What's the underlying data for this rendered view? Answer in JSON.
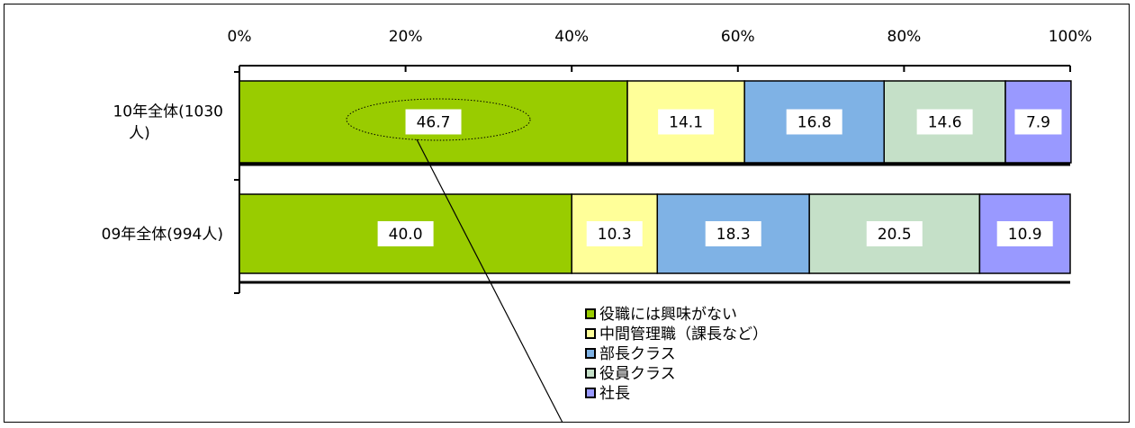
{
  "chart_data": {
    "type": "bar",
    "orientation": "horizontal",
    "stacked": true,
    "categories": [
      "10年全体(1030\n人)",
      "09年全体(994人)"
    ],
    "series": [
      {
        "name": "役職には興味がない",
        "color": "#99cc00",
        "values": [
          46.7,
          40.0
        ],
        "labels": [
          "46.7",
          "40.0"
        ]
      },
      {
        "name": "中間管理職（課長など）",
        "color": "#ffff99",
        "values": [
          14.1,
          10.3
        ],
        "labels": [
          "14.1",
          "10.3"
        ]
      },
      {
        "name": "部長クラス",
        "color": "#7fb2e5",
        "values": [
          16.8,
          18.3
        ],
        "labels": [
          "16.8",
          "18.3"
        ]
      },
      {
        "name": "役員クラス",
        "color": "#c5e0c8",
        "values": [
          14.6,
          20.5
        ],
        "labels": [
          "14.6",
          "20.5"
        ]
      },
      {
        "name": "社長",
        "color": "#9999ff",
        "values": [
          7.9,
          10.9
        ],
        "labels": [
          "7.9",
          "10.9"
        ]
      }
    ],
    "xticks": [
      "0%",
      "20%",
      "40%",
      "60%",
      "80%",
      "100%"
    ],
    "xlim": [
      0,
      100
    ],
    "legend_position": "bottom-right",
    "annotation": {
      "type": "dotted-ellipse-callout",
      "target": "46.7"
    }
  }
}
